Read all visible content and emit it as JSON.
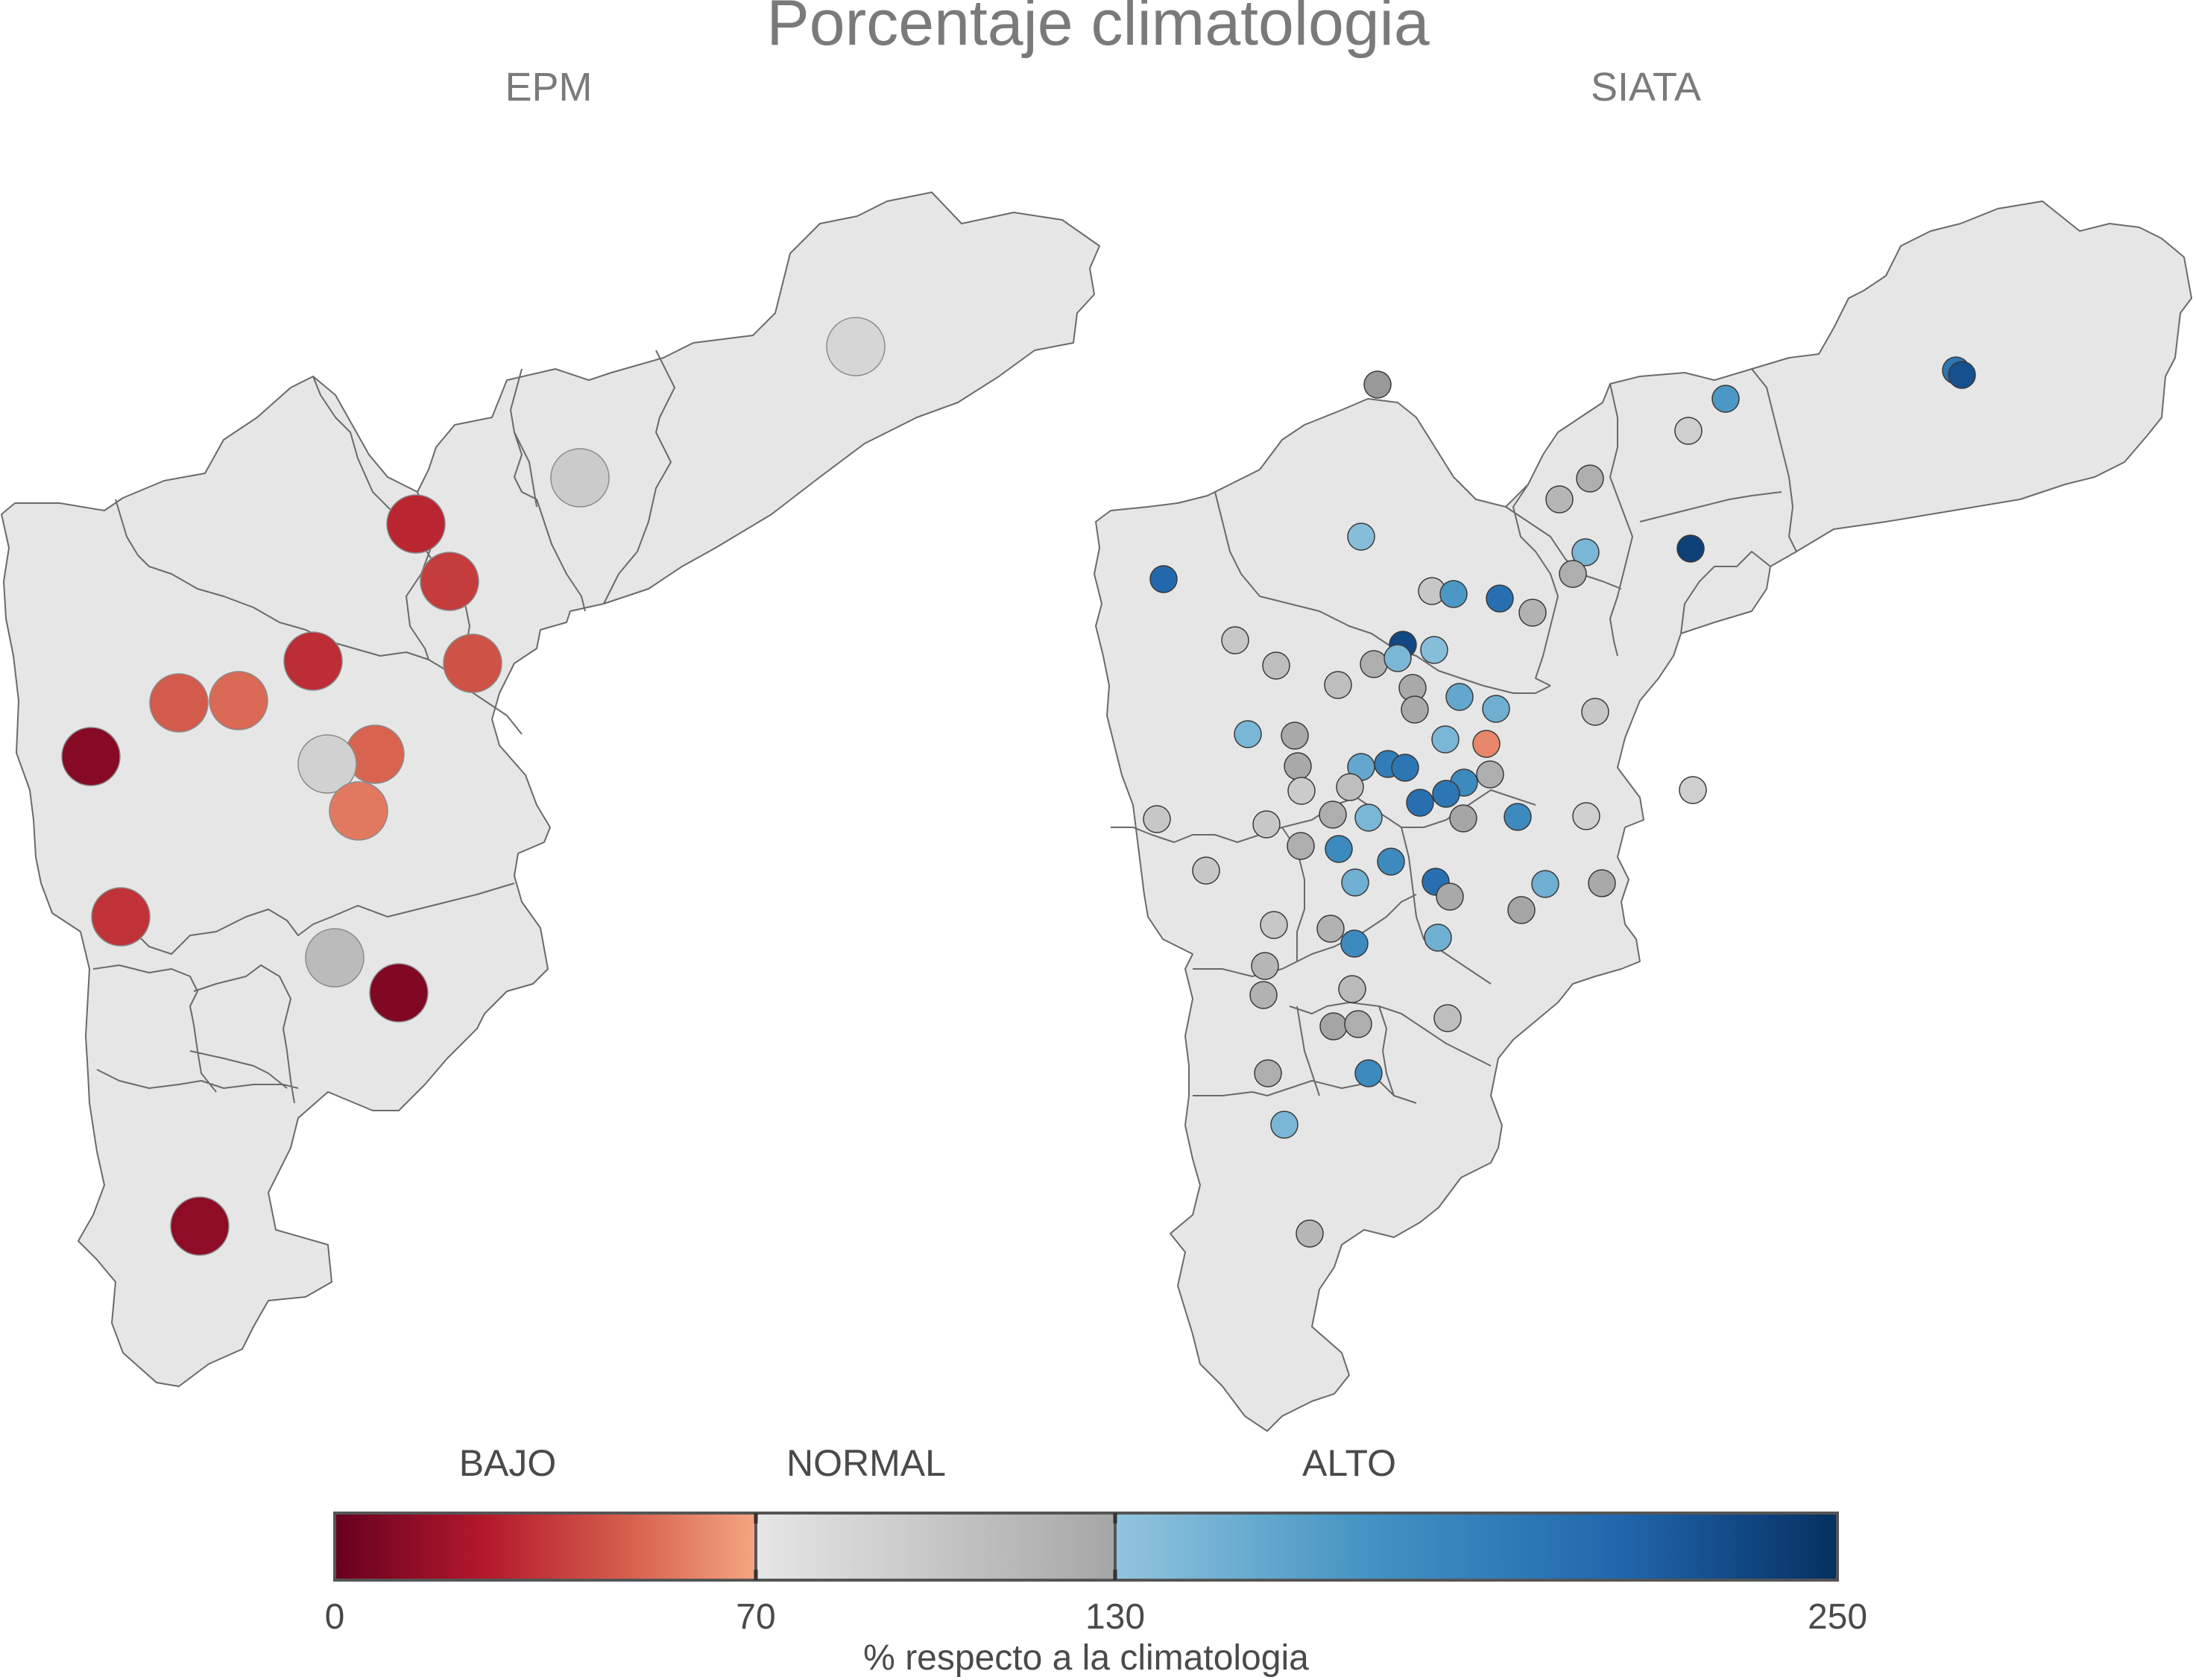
{
  "title": "Porcentaje climatologia",
  "panels": [
    {
      "label": "EPM"
    },
    {
      "label": "SIATA"
    }
  ],
  "legend": {
    "categories": [
      "BAJO",
      "NORMAL",
      "ALTO"
    ],
    "ticks": [
      "0",
      "70",
      "130",
      "250"
    ],
    "tick_values": [
      0,
      70,
      130,
      250
    ],
    "xlabel": "% respecto a la climatologia",
    "colors": {
      "bajo": [
        "#67001f",
        "#b2182b",
        "#d6604d",
        "#f4a582"
      ],
      "normal": [
        "#e6e6e6",
        "#a6a6a6"
      ],
      "alto": [
        "#92c5de",
        "#4393c3",
        "#2166ac",
        "#053061"
      ]
    }
  },
  "stations": {
    "epm": [
      {
        "pct": 85
      },
      {
        "pct": 95
      },
      {
        "pct": 28
      },
      {
        "pct": 35
      },
      {
        "pct": 42
      },
      {
        "pct": 30
      },
      {
        "pct": 50
      },
      {
        "pct": 10
      },
      {
        "pct": 48
      },
      {
        "pct": 90
      },
      {
        "pct": 55
      },
      {
        "pct": 45
      },
      {
        "pct": 32
      },
      {
        "pct": 110
      },
      {
        "pct": 8
      },
      {
        "pct": 12
      }
    ],
    "siata_counts": {
      "bajo": 1,
      "normal": 38,
      "alto": 31
    }
  }
}
